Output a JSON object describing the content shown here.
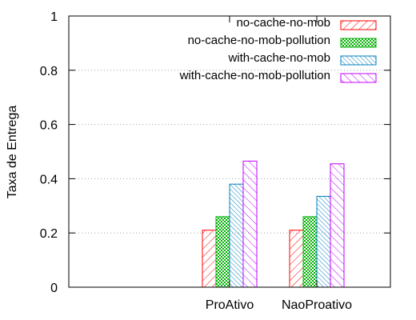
{
  "chart_data": {
    "type": "bar",
    "categories": [
      "ProAtivo",
      "NaoProativo"
    ],
    "series": [
      {
        "name": "no-cache-no-mob",
        "values": [
          0.21,
          0.21
        ],
        "color": "#ff0000",
        "pattern": "diagonal-hatch"
      },
      {
        "name": "no-cache-no-mob-pollution",
        "values": [
          0.26,
          0.26
        ],
        "color": "#00b000",
        "pattern": "crosshatch"
      },
      {
        "name": "with-cache-no-mob",
        "values": [
          0.38,
          0.335
        ],
        "color": "#0080c0",
        "pattern": "dense-diagonal-hatch"
      },
      {
        "name": "with-cache-no-mob-pollution",
        "values": [
          0.465,
          0.455
        ],
        "color": "#c000ff",
        "pattern": "diagonal-hatch"
      }
    ],
    "xlabel": "",
    "ylabel": "Taxa de Entrega",
    "ylim": [
      0,
      1
    ],
    "yticks": [
      "0",
      "0.2",
      "0.4",
      "0.6",
      "0.8",
      "1"
    ],
    "grid": true,
    "legend_position": "top-right"
  }
}
